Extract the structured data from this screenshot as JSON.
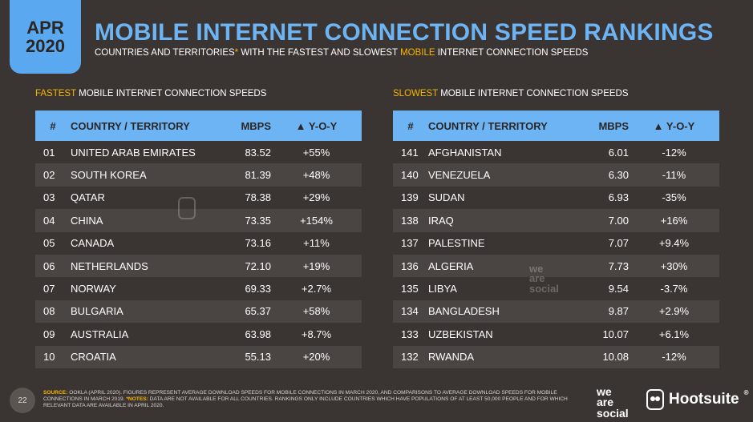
{
  "badge": {
    "month": "APR",
    "year": "2020"
  },
  "title": "MOBILE INTERNET CONNECTION SPEED RANKINGS",
  "subtitle": {
    "pre": "COUNTRIES AND TERRITORIES",
    "star": "*",
    "mid": " WITH THE FASTEST AND SLOWEST ",
    "hl": "MOBILE",
    "post": " INTERNET CONNECTION SPEEDS"
  },
  "fastest": {
    "head_hl": "FASTEST",
    "head_rest": " MOBILE INTERNET CONNECTION SPEEDS",
    "columns": [
      "#",
      "COUNTRY / TERRITORY",
      "MBPS",
      "▲ Y-O-Y"
    ],
    "rows": [
      {
        "rank": "01",
        "country": "UNITED ARAB EMIRATES",
        "mbps": "83.52",
        "yoy": "+55%"
      },
      {
        "rank": "02",
        "country": "SOUTH KOREA",
        "mbps": "81.39",
        "yoy": "+48%"
      },
      {
        "rank": "03",
        "country": "QATAR",
        "mbps": "78.38",
        "yoy": "+29%"
      },
      {
        "rank": "04",
        "country": "CHINA",
        "mbps": "73.35",
        "yoy": "+154%"
      },
      {
        "rank": "05",
        "country": "CANADA",
        "mbps": "73.16",
        "yoy": "+11%"
      },
      {
        "rank": "06",
        "country": "NETHERLANDS",
        "mbps": "72.10",
        "yoy": "+19%"
      },
      {
        "rank": "07",
        "country": "NORWAY",
        "mbps": "69.33",
        "yoy": "+2.7%"
      },
      {
        "rank": "08",
        "country": "BULGARIA",
        "mbps": "65.37",
        "yoy": "+58%"
      },
      {
        "rank": "09",
        "country": "AUSTRALIA",
        "mbps": "63.98",
        "yoy": "+8.7%"
      },
      {
        "rank": "10",
        "country": "CROATIA",
        "mbps": "55.13",
        "yoy": "+20%"
      }
    ]
  },
  "slowest": {
    "head_hl": "SLOWEST",
    "head_rest": " MOBILE INTERNET CONNECTION SPEEDS",
    "columns": [
      "#",
      "COUNTRY / TERRITORY",
      "MBPS",
      "▲ Y-O-Y"
    ],
    "rows": [
      {
        "rank": "141",
        "country": "AFGHANISTAN",
        "mbps": "6.01",
        "yoy": "-12%"
      },
      {
        "rank": "140",
        "country": "VENEZUELA",
        "mbps": "6.30",
        "yoy": "-11%"
      },
      {
        "rank": "139",
        "country": "SUDAN",
        "mbps": "6.93",
        "yoy": "-35%"
      },
      {
        "rank": "138",
        "country": "IRAQ",
        "mbps": "7.00",
        "yoy": "+16%"
      },
      {
        "rank": "137",
        "country": "PALESTINE",
        "mbps": "7.07",
        "yoy": "+9.4%"
      },
      {
        "rank": "136",
        "country": "ALGERIA",
        "mbps": "7.73",
        "yoy": "+30%"
      },
      {
        "rank": "135",
        "country": "LIBYA",
        "mbps": "9.54",
        "yoy": "-3.7%"
      },
      {
        "rank": "134",
        "country": "BANGLADESH",
        "mbps": "9.87",
        "yoy": "+2.9%"
      },
      {
        "rank": "133",
        "country": "UZBEKISTAN",
        "mbps": "10.07",
        "yoy": "+6.1%"
      },
      {
        "rank": "132",
        "country": "RWANDA",
        "mbps": "10.08",
        "yoy": "-12%"
      }
    ]
  },
  "footer": {
    "page": "22",
    "source_label": "SOURCE:",
    "source_text": " OOKLA (APRIL 2020). FIGURES REPRESENT AVERAGE DOWNLOAD SPEEDS FOR MOBILE CONNECTIONS IN MARCH 2020, AND COMPARISONS TO AVERAGE DOWNLOAD SPEEDS FOR MOBILE CONNECTIONS IN MARCH 2019. ",
    "notes_label": "*NOTES:",
    "notes_text": " DATA ARE NOT AVAILABLE FOR ALL COUNTRIES. RANKINGS ONLY INCLUDE COUNTRIES WHICH HAVE POPULATIONS OF AT LEAST 50,000 PEOPLE AND FOR WHICH RELEVANT DATA ARE AVAILABLE IN APRIL 2020."
  },
  "logos": {
    "was_line1": "we",
    "was_line2": "are",
    "was_line3": "social",
    "hootsuite": "Hootsuite",
    "hoot_mark": "®"
  },
  "colors": {
    "accent_blue": "#6db4f5",
    "badge_blue": "#5aa9f0",
    "highlight": "#f7b500",
    "background": "#3a3532"
  }
}
